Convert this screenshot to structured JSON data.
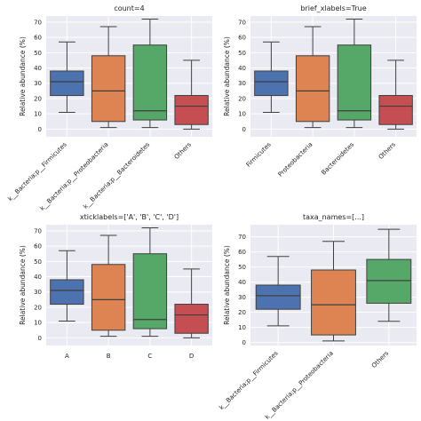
{
  "chart_data": [
    {
      "type": "box",
      "title": "count=4",
      "ylabel": "Relative abundance (%)",
      "xlabel": "",
      "ylim": [
        -5,
        74
      ],
      "yticks": [
        0,
        10,
        20,
        30,
        40,
        50,
        60,
        70
      ],
      "grid": true,
      "rotated_xticks": true,
      "categories": [
        "k__Bacteria;p__Firmicutes",
        "k__Bacteria;p__Proteobacteria",
        "k__Bacteria;p__Bacteroidetes",
        "Others"
      ],
      "boxes": [
        {
          "whisker_low": 11,
          "q1": 22,
          "median": 31,
          "q3": 38,
          "whisker_high": 57
        },
        {
          "whisker_low": 1,
          "q1": 5,
          "median": 25,
          "q3": 48,
          "whisker_high": 67
        },
        {
          "whisker_low": 1,
          "q1": 6,
          "median": 12,
          "q3": 55,
          "whisker_high": 72
        },
        {
          "whisker_low": 0,
          "q1": 3,
          "median": 15,
          "q3": 22,
          "whisker_high": 45
        }
      ],
      "colors": [
        "#4c72b0",
        "#dd8452",
        "#55a868",
        "#c44e52"
      ]
    },
    {
      "type": "box",
      "title": "brief_xlabels=True",
      "ylabel": "Relative abundance (%)",
      "xlabel": "",
      "ylim": [
        -5,
        74
      ],
      "yticks": [
        0,
        10,
        20,
        30,
        40,
        50,
        60,
        70
      ],
      "grid": true,
      "rotated_xticks": true,
      "categories": [
        "Firmicutes",
        "Proteobacteria",
        "Bacteroidetes",
        "Others"
      ],
      "boxes": [
        {
          "whisker_low": 11,
          "q1": 22,
          "median": 31,
          "q3": 38,
          "whisker_high": 57
        },
        {
          "whisker_low": 1,
          "q1": 5,
          "median": 25,
          "q3": 48,
          "whisker_high": 67
        },
        {
          "whisker_low": 1,
          "q1": 6,
          "median": 12,
          "q3": 55,
          "whisker_high": 72
        },
        {
          "whisker_low": 0,
          "q1": 3,
          "median": 15,
          "q3": 22,
          "whisker_high": 45
        }
      ],
      "colors": [
        "#4c72b0",
        "#dd8452",
        "#55a868",
        "#c44e52"
      ]
    },
    {
      "type": "box",
      "title": "xticklabels=['A', 'B', 'C', 'D']",
      "ylabel": "Relative abundance (%)",
      "xlabel": "",
      "ylim": [
        -5,
        74
      ],
      "yticks": [
        0,
        10,
        20,
        30,
        40,
        50,
        60,
        70
      ],
      "grid": true,
      "rotated_xticks": false,
      "categories": [
        "A",
        "B",
        "C",
        "D"
      ],
      "boxes": [
        {
          "whisker_low": 11,
          "q1": 22,
          "median": 31,
          "q3": 38,
          "whisker_high": 57
        },
        {
          "whisker_low": 1,
          "q1": 5,
          "median": 25,
          "q3": 48,
          "whisker_high": 67
        },
        {
          "whisker_low": 1,
          "q1": 6,
          "median": 12,
          "q3": 55,
          "whisker_high": 72
        },
        {
          "whisker_low": 0,
          "q1": 3,
          "median": 15,
          "q3": 22,
          "whisker_high": 45
        }
      ],
      "colors": [
        "#4c72b0",
        "#dd8452",
        "#55a868",
        "#c44e52"
      ]
    },
    {
      "type": "box",
      "title": "taxa_names=[...]",
      "ylabel": "Relative abundance (%)",
      "xlabel": "",
      "ylim": [
        -2,
        78
      ],
      "yticks": [
        0,
        10,
        20,
        30,
        40,
        50,
        60,
        70
      ],
      "grid": true,
      "rotated_xticks": true,
      "categories": [
        "k__Bacteria;p__Firmicutes",
        "k__Bacteria;p__Proteobacteria",
        "Others"
      ],
      "boxes": [
        {
          "whisker_low": 11,
          "q1": 22,
          "median": 31,
          "q3": 38,
          "whisker_high": 57
        },
        {
          "whisker_low": 1,
          "q1": 5,
          "median": 25,
          "q3": 48,
          "whisker_high": 67
        },
        {
          "whisker_low": 14,
          "q1": 26,
          "median": 41,
          "q3": 55,
          "whisker_high": 75
        }
      ],
      "colors": [
        "#4c72b0",
        "#dd8452",
        "#55a868"
      ]
    }
  ]
}
